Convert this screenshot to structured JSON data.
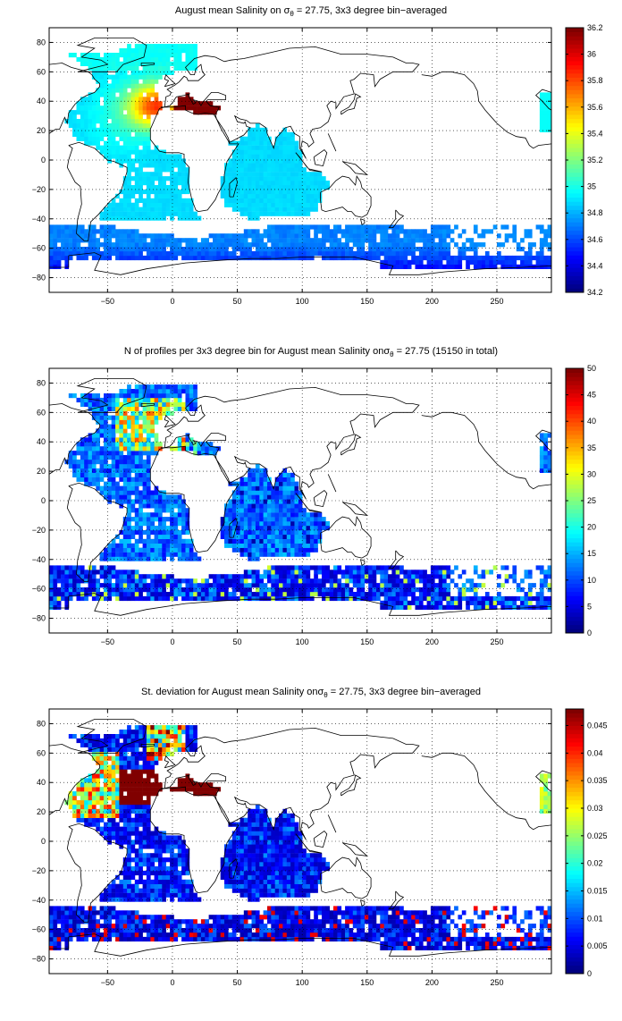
{
  "panels": [
    {
      "title_pre": "August mean Salinity on ",
      "title_sym": "σ",
      "title_sub": "θ",
      "title_post": " = 27.75, 3x3 degree bin−averaged",
      "colorbar": {
        "ticks": [
          "34.2",
          "34.4",
          "34.6",
          "34.8",
          "35",
          "35.2",
          "35.4",
          "35.6",
          "35.8",
          "36",
          "36.2"
        ]
      },
      "field": "salinity"
    },
    {
      "title_pre": "N of profiles per 3x3 degree bin for August mean Salinity on",
      "title_sym": "σ",
      "title_sub": "θ",
      "title_post": " = 27.75 (15150 in total)",
      "colorbar": {
        "ticks": [
          "0",
          "5",
          "10",
          "15",
          "20",
          "25",
          "30",
          "35",
          "40",
          "45",
          "50"
        ]
      },
      "field": "count"
    },
    {
      "title_pre": "St. deviation for August mean Salinity on",
      "title_sym": "σ",
      "title_sub": "θ",
      "title_post": " = 27.75, 3x3 degree bin−averaged",
      "colorbar": {
        "ticks": [
          "0",
          "0.005",
          "0.01",
          "0.015",
          "0.02",
          "0.025",
          "0.03",
          "0.035",
          "0.04",
          "0.045"
        ]
      },
      "field": "stdev"
    }
  ],
  "axes": {
    "x_ticks": [
      "−50",
      "0",
      "50",
      "100",
      "150",
      "200",
      "250"
    ],
    "y_ticks": [
      "80",
      "60",
      "40",
      "20",
      "0",
      "−20",
      "−40",
      "−60",
      "−80"
    ]
  },
  "chart_data": [
    {
      "type": "heatmap",
      "title": "August mean Salinity on σθ = 27.75, 3x3 degree bin−averaged",
      "xlim": [
        -95,
        292
      ],
      "ylim": [
        -90,
        90
      ],
      "x_ticks": [
        -50,
        0,
        50,
        100,
        150,
        200,
        250
      ],
      "y_ticks": [
        -80,
        -60,
        -40,
        -20,
        0,
        20,
        40,
        60,
        80
      ],
      "grid": true,
      "colorbar_range": [
        34.2,
        36.2
      ],
      "colormap": "jet",
      "bin_size_deg": 3
    },
    {
      "type": "heatmap",
      "title": "N of profiles per 3x3 degree bin for August mean Salinity on σθ = 27.75 (15150 in total)",
      "xlim": [
        -95,
        292
      ],
      "ylim": [
        -90,
        90
      ],
      "x_ticks": [
        -50,
        0,
        50,
        100,
        150,
        200,
        250
      ],
      "y_ticks": [
        -80,
        -60,
        -40,
        -20,
        0,
        20,
        40,
        60,
        80
      ],
      "grid": true,
      "colorbar_range": [
        0,
        50
      ],
      "colormap": "jet",
      "total_profiles": 15150
    },
    {
      "type": "heatmap",
      "title": "St. deviation for August mean Salinity on σθ = 27.75, 3x3 degree bin−averaged",
      "xlim": [
        -95,
        292
      ],
      "ylim": [
        -90,
        90
      ],
      "x_ticks": [
        -50,
        0,
        50,
        100,
        150,
        200,
        250
      ],
      "y_ticks": [
        -80,
        -60,
        -40,
        -20,
        0,
        20,
        40,
        60,
        80
      ],
      "grid": true,
      "colorbar_range": [
        0,
        0.048
      ],
      "colormap": "jet"
    }
  ]
}
